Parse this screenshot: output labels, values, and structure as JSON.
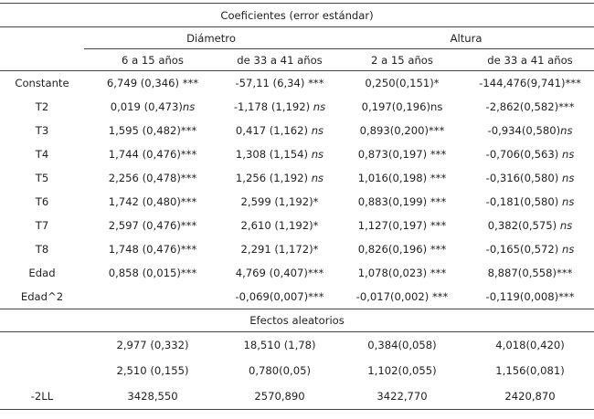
{
  "title": "Coeficientes (error estándar)",
  "groups": {
    "diametro": "Diámetro",
    "altura": "Altura"
  },
  "cols": [
    "6 a 15 años",
    "de 33 a 41 años",
    "2 a 15 años",
    "de 33 a 41 años"
  ],
  "rows": [
    {
      "label": "Constante",
      "c1": "6,749 (0,346) ***",
      "c2": "-57,11 (6,34) ***",
      "c3": "0,250(0,151)*",
      "c4": "-144,476(9,741)***"
    },
    {
      "label": "T2",
      "c1": "0,019 (0,473)",
      "c1s": "ns",
      "c2": "-1,178 (1,192)",
      "c2s": " ns",
      "c3": "0,197(0,196)ns",
      "c4": "-2,862(0,582)***"
    },
    {
      "label": "T3",
      "c1": "1,595 (0,482)***",
      "c2": "0,417 (1,162)",
      "c2s": " ns",
      "c3": "0,893(0,200)***",
      "c4": "-0,934(0,580)",
      "c4s": "ns"
    },
    {
      "label": "T4",
      "c1": "1,744 (0,476)***",
      "c2": "1,308 (1,154)",
      "c2s": " ns",
      "c3": "0,873(0,197) ***",
      "c4": "-0,706(0,563)",
      "c4s": " ns"
    },
    {
      "label": "T5",
      "c1": "2,256 (0,478)***",
      "c2": "1,256 (1,192)",
      "c2s": " ns",
      "c3": "1,016(0,198) ***",
      "c4": "-0,316(0,580)",
      "c4s": " ns"
    },
    {
      "label": "T6",
      "c1": "1,742 (0,480)***",
      "c2": "2,599 (1,192)*",
      "c3": "0,883(0,199) ***",
      "c4": "-0,181(0,580)",
      "c4s": " ns"
    },
    {
      "label": "T7",
      "c1": "2,597 (0,476)***",
      "c2": "2,610 (1,192)*",
      "c3": "1,127(0,197) ***",
      "c4": "0,382(0,575)",
      "c4s": " ns"
    },
    {
      "label": "T8",
      "c1": "1,748 (0,476)***",
      "c2": "2,291 (1,172)*",
      "c3": "0,826(0,196) ***",
      "c4": "-0,165(0,572)",
      "c4s": " ns"
    },
    {
      "label": "Edad",
      "c1": "0,858 (0,015)***",
      "c2": "4,769 (0,407)***",
      "c3": "1,078(0,023) ***",
      "c4": "8,887(0,558)***"
    },
    {
      "label": "Edad^2",
      "c1": "",
      "c2": "-0,069(0,007)***",
      "c3": "-0,017(0,002) ***",
      "c4": "-0,119(0,008)***"
    }
  ],
  "random_title": "Efectos aleatorios",
  "random_rows": [
    {
      "label": "",
      "c1": "2,977 (0,332)",
      "c2": "18,510 (1,78)",
      "c3": "0,384(0,058)",
      "c4": "4,018(0,420)"
    },
    {
      "label": "",
      "c1": "2,510 (0,155)",
      "c2": "0,780(0,05)",
      "c3": "1,102(0,055)",
      "c4": "1,156(0,081)"
    },
    {
      "label": "-2LL",
      "c1": "3428,550",
      "c2": "2570,890",
      "c3": "3422,770",
      "c4": "2420,870"
    }
  ]
}
